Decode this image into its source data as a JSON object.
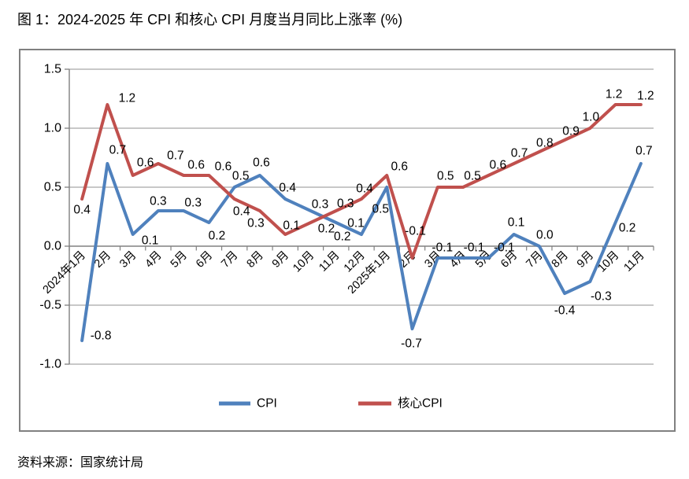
{
  "page": {
    "title": "图 1：2024-2025 年 CPI 和核心 CPI 月度当月同比上涨率 (%)",
    "source": "资料来源：国家统计局"
  },
  "chart_data": {
    "type": "line",
    "title": "图 1：2024-2025 年 CPI 和核心 CPI 月度当月同比上涨率 (%)",
    "source": "资料来源：国家统计局",
    "categories": [
      "2024年1月",
      "2月",
      "3月",
      "4月",
      "5月",
      "6月",
      "7月",
      "8月",
      "9月",
      "10月",
      "11月",
      "12月",
      "2025年1月",
      "2月",
      "3月",
      "4月",
      "5月",
      "6月",
      "7月",
      "8月",
      "9月",
      "10月",
      "11月"
    ],
    "series": [
      {
        "name": "CPI",
        "color": "#4F81BD",
        "values": [
          -0.8,
          0.7,
          0.1,
          0.3,
          0.3,
          0.2,
          0.5,
          0.6,
          0.4,
          0.3,
          0.2,
          0.1,
          0.5,
          -0.7,
          -0.1,
          -0.1,
          -0.1,
          0.1,
          0.0,
          -0.4,
          -0.3,
          0.2,
          0.7
        ]
      },
      {
        "name": "核心CPI",
        "color": "#C0504D",
        "values": [
          0.4,
          1.2,
          0.6,
          0.7,
          0.6,
          0.6,
          0.4,
          0.3,
          0.1,
          0.2,
          0.3,
          0.4,
          0.6,
          -0.1,
          0.5,
          0.5,
          0.6,
          0.7,
          0.8,
          0.9,
          1.0,
          1.2,
          1.2
        ]
      }
    ],
    "ylim": [
      -1.0,
      1.5
    ],
    "ytick_step": 0.5,
    "ytick_labels": [
      "1.5",
      "1.0",
      "0.5",
      "0.0",
      "-0.5",
      "-1.0"
    ],
    "data_labels": true,
    "grid": true,
    "legend_position": "bottom",
    "axis_color": "#808080",
    "gridline_color": "#A6A6A6",
    "frame_color": "#808080"
  }
}
